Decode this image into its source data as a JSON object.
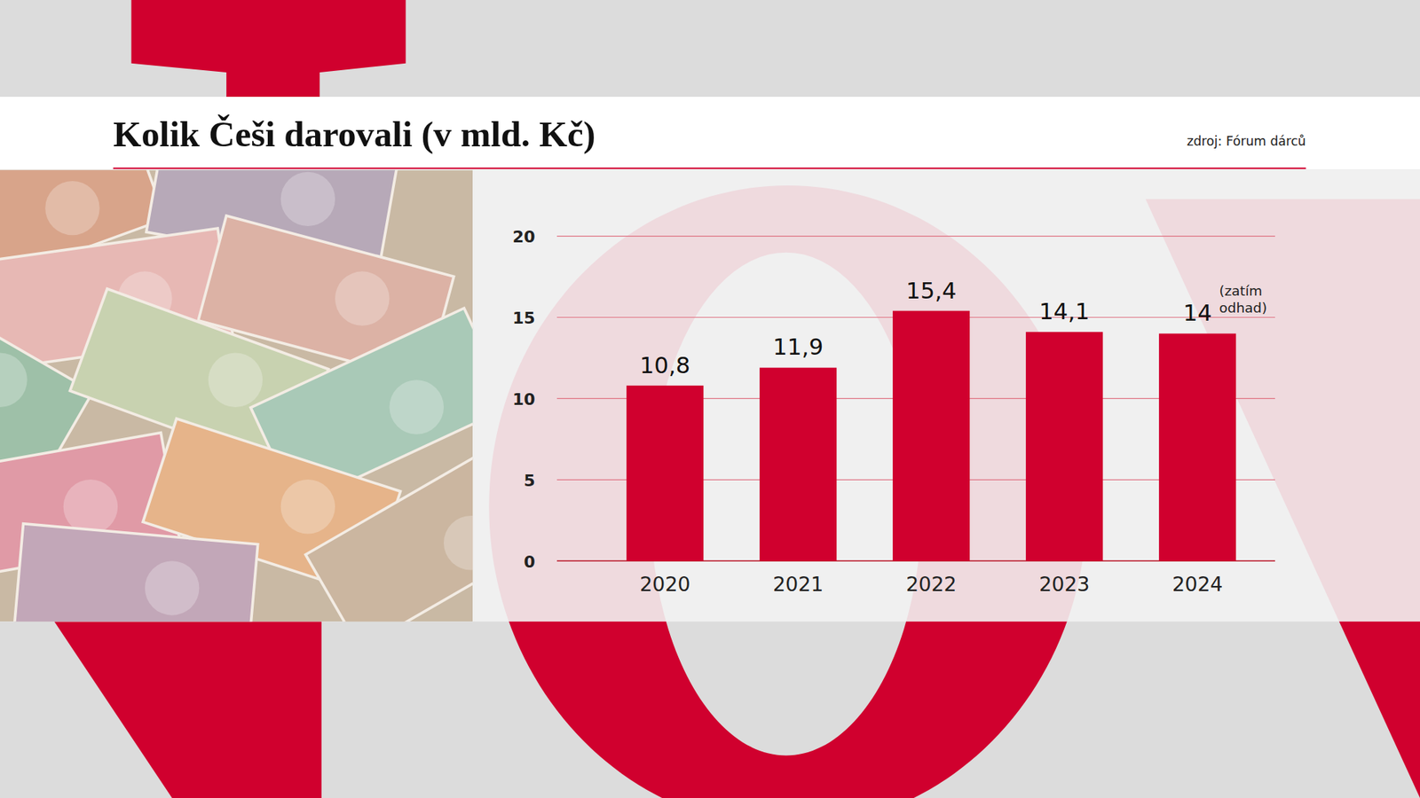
{
  "chart_data": {
    "type": "bar",
    "title": "Kolik Češi darovali (v mld. Kč)",
    "source": "zdroj: Fórum dárců",
    "categories": [
      "2020",
      "2021",
      "2022",
      "2023",
      "2024"
    ],
    "values": [
      10.8,
      11.9,
      15.4,
      14.1,
      14
    ],
    "value_labels": [
      "10,8",
      "11,9",
      "15,4",
      "14,1",
      "14"
    ],
    "data_labels": true,
    "color": "#d0002e",
    "ylim": [
      0,
      20
    ],
    "yticks": [
      0,
      5,
      10,
      15,
      20
    ],
    "grid": true,
    "annotations": [
      {
        "text": "(zatím odhad)",
        "x": "2024"
      }
    ]
  }
}
